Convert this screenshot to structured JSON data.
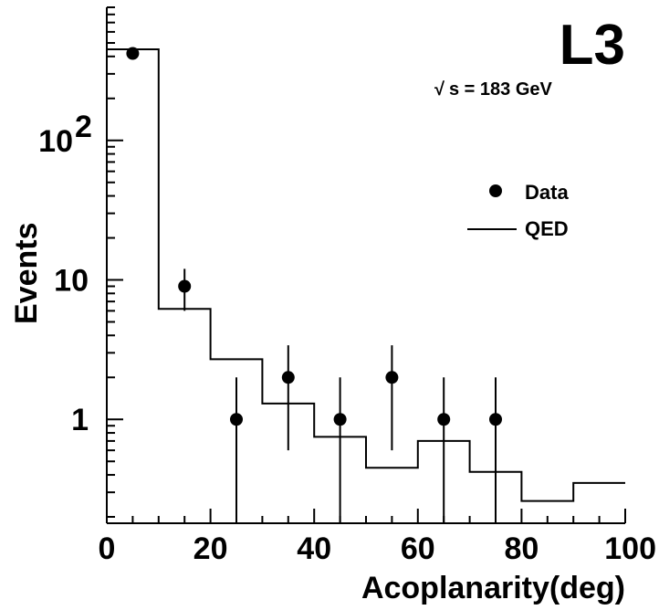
{
  "chart_data": {
    "type": "scatter",
    "experiment_label": "L3",
    "energy_label": "s = 183 GeV",
    "energy_sqrt_symbol": "√",
    "xlabel": "Acoplanarity(deg)",
    "ylabel": "Events",
    "xlim": [
      0,
      100
    ],
    "ylim": [
      0.18,
      900
    ],
    "y_scale": "log",
    "grid": false,
    "legend_position": "right",
    "x_ticks": [
      "0",
      "20",
      "40",
      "60",
      "80",
      "100"
    ],
    "y_ticks": [
      {
        "value": 1,
        "base": "1",
        "exp": ""
      },
      {
        "value": 10,
        "base": "10",
        "exp": ""
      },
      {
        "value": 100,
        "base": "10",
        "exp": "2"
      }
    ],
    "series": [
      {
        "name": "Data",
        "style": "points",
        "x": [
          5,
          15,
          25,
          35,
          45,
          55,
          65,
          75
        ],
        "y": [
          420,
          9,
          1,
          2,
          1,
          2,
          1,
          1
        ],
        "err_low": [
          0,
          3,
          1,
          1.4,
          1,
          1.4,
          1,
          1
        ],
        "err_high": [
          0,
          3,
          1,
          1.4,
          1,
          1.4,
          1,
          1
        ]
      },
      {
        "name": "QED",
        "style": "histogram",
        "bin_edges": [
          0,
          10,
          20,
          30,
          40,
          50,
          60,
          70,
          80,
          90,
          100
        ],
        "values": [
          450,
          6.2,
          2.7,
          1.3,
          0.75,
          0.45,
          0.7,
          0.42,
          0.26,
          0.35
        ]
      }
    ]
  }
}
